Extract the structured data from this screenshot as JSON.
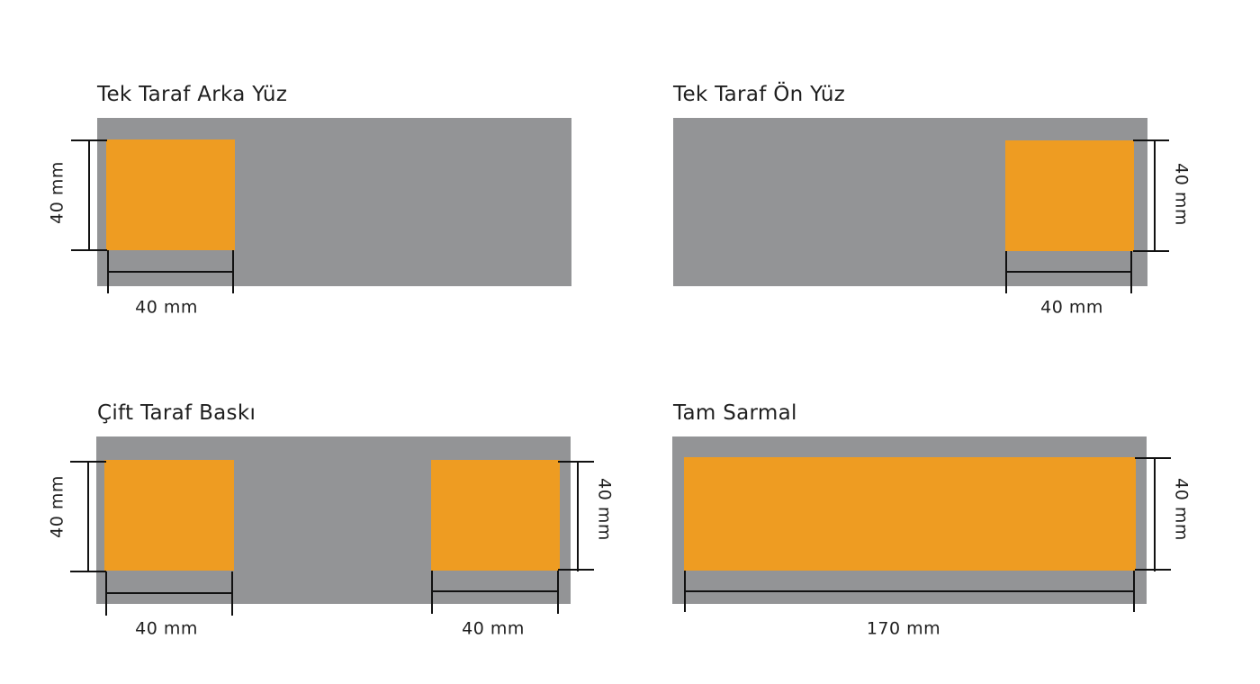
{
  "panels": [
    {
      "title": "Tek Taraf Arka Yüz",
      "width_label": "40 mm",
      "height_label": "40 mm"
    },
    {
      "title": "Tek Taraf Ön Yüz",
      "width_label": "40 mm",
      "height_label": "40 mm"
    },
    {
      "title": "Çift Taraf Baskı",
      "left_width_label": "40 mm",
      "left_height_label": "40 mm",
      "right_width_label": "40 mm",
      "right_height_label": "40 mm"
    },
    {
      "title": "Tam Sarmal",
      "width_label": "170 mm",
      "height_label": "40 mm"
    }
  ],
  "colors": {
    "band": "#939496",
    "print_area": "#ee9c22",
    "dimension_line": "#111111"
  }
}
